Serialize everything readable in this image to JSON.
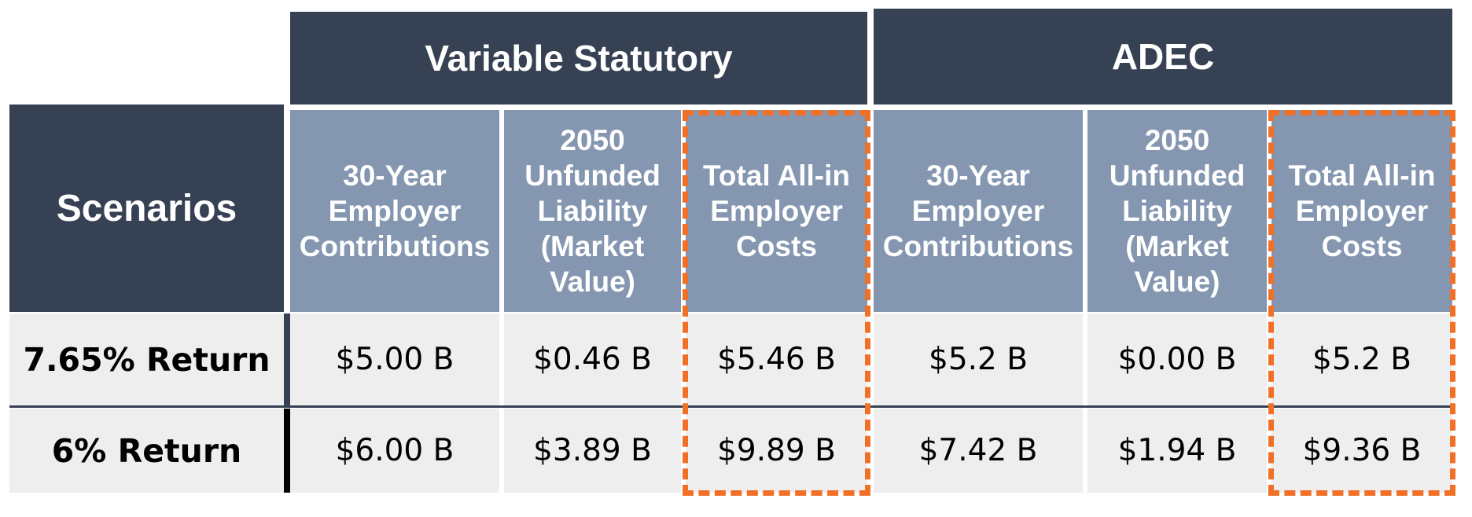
{
  "table": {
    "groups": [
      {
        "label": "Variable Statutory"
      },
      {
        "label": "ADEC"
      }
    ],
    "scenarios_header": "Scenarios",
    "columns": [
      {
        "label": "30-Year\nEmployer\nContributions"
      },
      {
        "label": "2050\nUnfunded\nLiability\n(Market\nValue)"
      },
      {
        "label": "Total All-in\nEmployer\nCosts"
      },
      {
        "label": "30-Year\nEmployer\nContributions"
      },
      {
        "label": "2050\nUnfunded\nLiability\n(Market\nValue)"
      },
      {
        "label": "Total All-in\nEmployer\nCosts"
      }
    ],
    "rows": [
      {
        "label": "7.65% Return",
        "values": [
          "$5.00 B",
          "$0.46 B",
          "$5.46 B",
          "$5.2 B",
          "$0.00 B",
          "$5.2 B"
        ]
      },
      {
        "label": "6% Return",
        "values": [
          "$6.00 B",
          "$3.89 B",
          "$9.89 B",
          "$7.42 B",
          "$1.94 B",
          "$9.36 B"
        ]
      }
    ],
    "colors": {
      "group_header": "#364153",
      "column_header": "#8496b0",
      "body": "#eeeeee",
      "highlight": "#f07028"
    }
  }
}
